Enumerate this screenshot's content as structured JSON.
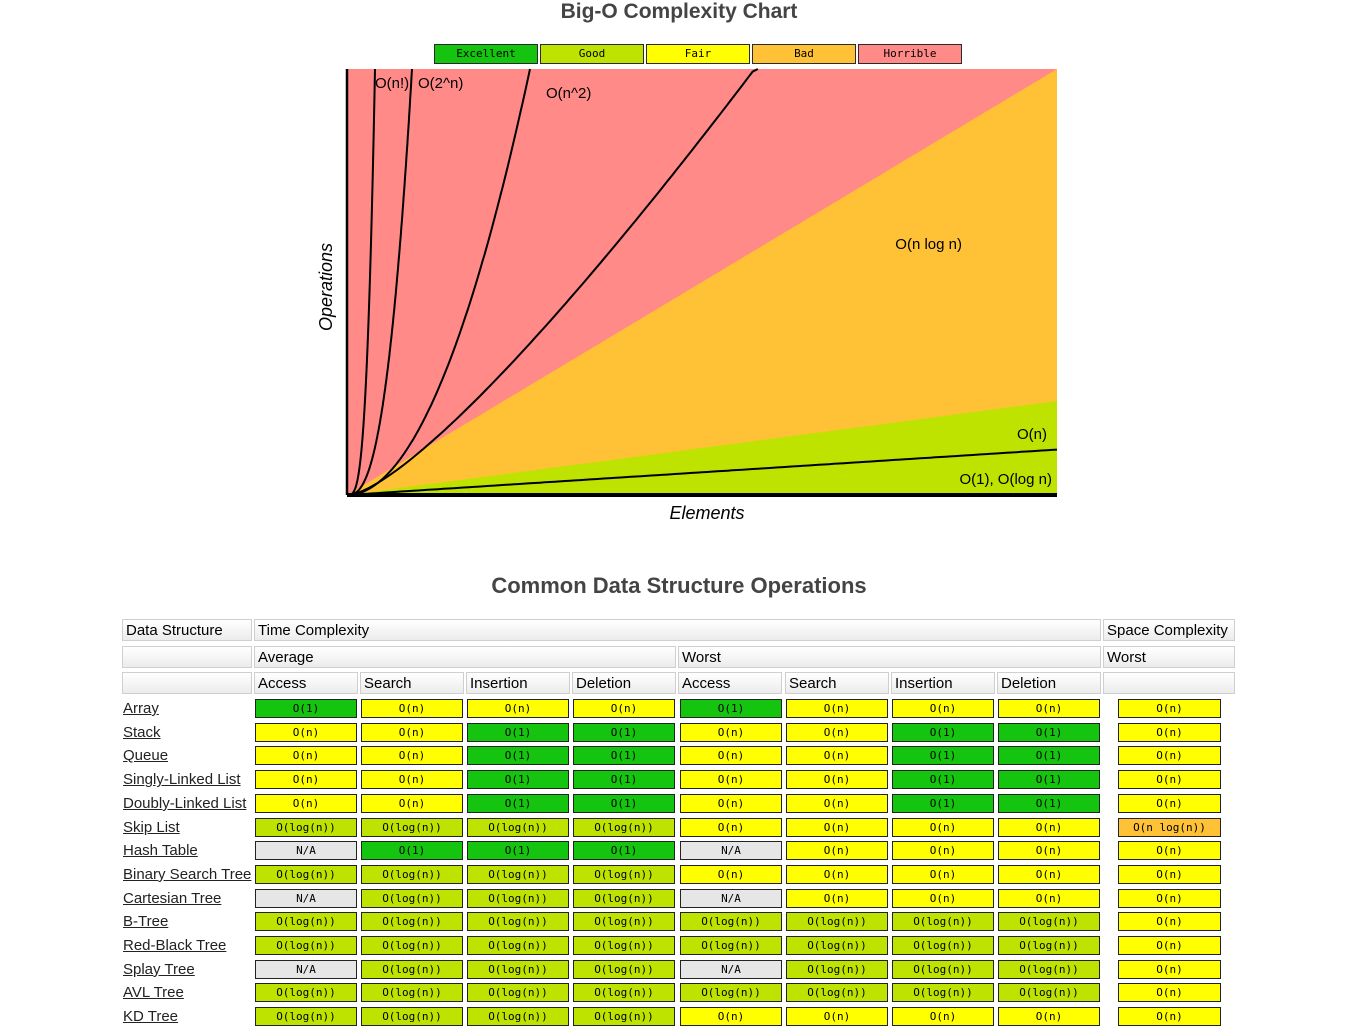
{
  "chart": {
    "title": "Big-O Complexity Chart",
    "legend": [
      {
        "label": "Excellent",
        "color": "#14c40e"
      },
      {
        "label": "Good",
        "color": "#bfe300"
      },
      {
        "label": "Fair",
        "color": "#ffff00"
      },
      {
        "label": "Bad",
        "color": "#ffc136"
      },
      {
        "label": "Horrible",
        "color": "#ff8a87"
      }
    ]
  },
  "chart_data": {
    "type": "line",
    "title": "Big-O Complexity Chart",
    "xlabel": "Elements",
    "ylabel": "Operations",
    "grid": false,
    "legend_placement": "top",
    "regions": [
      {
        "name": "Horrible",
        "color": "#ff8a87"
      },
      {
        "name": "Bad",
        "color": "#ffc136"
      },
      {
        "name": "Good",
        "color": "#bfe300"
      }
    ],
    "curves": [
      {
        "name": "O(n!)"
      },
      {
        "name": "O(2^n)"
      },
      {
        "name": "O(n^2)"
      },
      {
        "name": "O(n log n)"
      },
      {
        "name": "O(n)"
      },
      {
        "name": "O(1), O(log n)"
      }
    ]
  },
  "table": {
    "title": "Common Data Structure Operations",
    "headers": {
      "data_structure": "Data Structure",
      "time_complexity": "Time Complexity",
      "space_complexity": "Space Complexity",
      "average": "Average",
      "worst": "Worst",
      "space_worst": "Worst",
      "ops": [
        "Access",
        "Search",
        "Insertion",
        "Deletion",
        "Access",
        "Search",
        "Insertion",
        "Deletion"
      ]
    },
    "rating_colors": {
      "excellent": "#14c40e",
      "good": "#bfe300",
      "fair": "#ffff00",
      "bad": "#ffc136",
      "na": "#e6e6e6"
    },
    "rows": [
      {
        "name": "Array",
        "values": [
          "O(1)",
          "O(n)",
          "O(n)",
          "O(n)",
          "O(1)",
          "O(n)",
          "O(n)",
          "O(n)",
          "O(n)"
        ],
        "ratings": [
          "excellent",
          "fair",
          "fair",
          "fair",
          "excellent",
          "fair",
          "fair",
          "fair",
          "fair"
        ]
      },
      {
        "name": "Stack",
        "values": [
          "O(n)",
          "O(n)",
          "O(1)",
          "O(1)",
          "O(n)",
          "O(n)",
          "O(1)",
          "O(1)",
          "O(n)"
        ],
        "ratings": [
          "fair",
          "fair",
          "excellent",
          "excellent",
          "fair",
          "fair",
          "excellent",
          "excellent",
          "fair"
        ]
      },
      {
        "name": "Queue",
        "values": [
          "O(n)",
          "O(n)",
          "O(1)",
          "O(1)",
          "O(n)",
          "O(n)",
          "O(1)",
          "O(1)",
          "O(n)"
        ],
        "ratings": [
          "fair",
          "fair",
          "excellent",
          "excellent",
          "fair",
          "fair",
          "excellent",
          "excellent",
          "fair"
        ]
      },
      {
        "name": "Singly-Linked List",
        "values": [
          "O(n)",
          "O(n)",
          "O(1)",
          "O(1)",
          "O(n)",
          "O(n)",
          "O(1)",
          "O(1)",
          "O(n)"
        ],
        "ratings": [
          "fair",
          "fair",
          "excellent",
          "excellent",
          "fair",
          "fair",
          "excellent",
          "excellent",
          "fair"
        ]
      },
      {
        "name": "Doubly-Linked List",
        "values": [
          "O(n)",
          "O(n)",
          "O(1)",
          "O(1)",
          "O(n)",
          "O(n)",
          "O(1)",
          "O(1)",
          "O(n)"
        ],
        "ratings": [
          "fair",
          "fair",
          "excellent",
          "excellent",
          "fair",
          "fair",
          "excellent",
          "excellent",
          "fair"
        ]
      },
      {
        "name": "Skip List",
        "values": [
          "O(log(n))",
          "O(log(n))",
          "O(log(n))",
          "O(log(n))",
          "O(n)",
          "O(n)",
          "O(n)",
          "O(n)",
          "O(n log(n))"
        ],
        "ratings": [
          "good",
          "good",
          "good",
          "good",
          "fair",
          "fair",
          "fair",
          "fair",
          "bad"
        ]
      },
      {
        "name": "Hash Table",
        "values": [
          "N/A",
          "O(1)",
          "O(1)",
          "O(1)",
          "N/A",
          "O(n)",
          "O(n)",
          "O(n)",
          "O(n)"
        ],
        "ratings": [
          "na",
          "excellent",
          "excellent",
          "excellent",
          "na",
          "fair",
          "fair",
          "fair",
          "fair"
        ]
      },
      {
        "name": "Binary Search Tree",
        "values": [
          "O(log(n))",
          "O(log(n))",
          "O(log(n))",
          "O(log(n))",
          "O(n)",
          "O(n)",
          "O(n)",
          "O(n)",
          "O(n)"
        ],
        "ratings": [
          "good",
          "good",
          "good",
          "good",
          "fair",
          "fair",
          "fair",
          "fair",
          "fair"
        ]
      },
      {
        "name": "Cartesian Tree",
        "values": [
          "N/A",
          "O(log(n))",
          "O(log(n))",
          "O(log(n))",
          "N/A",
          "O(n)",
          "O(n)",
          "O(n)",
          "O(n)"
        ],
        "ratings": [
          "na",
          "good",
          "good",
          "good",
          "na",
          "fair",
          "fair",
          "fair",
          "fair"
        ]
      },
      {
        "name": "B-Tree",
        "values": [
          "O(log(n))",
          "O(log(n))",
          "O(log(n))",
          "O(log(n))",
          "O(log(n))",
          "O(log(n))",
          "O(log(n))",
          "O(log(n))",
          "O(n)"
        ],
        "ratings": [
          "good",
          "good",
          "good",
          "good",
          "good",
          "good",
          "good",
          "good",
          "fair"
        ]
      },
      {
        "name": "Red-Black Tree",
        "values": [
          "O(log(n))",
          "O(log(n))",
          "O(log(n))",
          "O(log(n))",
          "O(log(n))",
          "O(log(n))",
          "O(log(n))",
          "O(log(n))",
          "O(n)"
        ],
        "ratings": [
          "good",
          "good",
          "good",
          "good",
          "good",
          "good",
          "good",
          "good",
          "fair"
        ]
      },
      {
        "name": "Splay Tree",
        "values": [
          "N/A",
          "O(log(n))",
          "O(log(n))",
          "O(log(n))",
          "N/A",
          "O(log(n))",
          "O(log(n))",
          "O(log(n))",
          "O(n)"
        ],
        "ratings": [
          "na",
          "good",
          "good",
          "good",
          "na",
          "good",
          "good",
          "good",
          "fair"
        ]
      },
      {
        "name": "AVL Tree",
        "values": [
          "O(log(n))",
          "O(log(n))",
          "O(log(n))",
          "O(log(n))",
          "O(log(n))",
          "O(log(n))",
          "O(log(n))",
          "O(log(n))",
          "O(n)"
        ],
        "ratings": [
          "good",
          "good",
          "good",
          "good",
          "good",
          "good",
          "good",
          "good",
          "fair"
        ]
      },
      {
        "name": "KD Tree",
        "values": [
          "O(log(n))",
          "O(log(n))",
          "O(log(n))",
          "O(log(n))",
          "O(n)",
          "O(n)",
          "O(n)",
          "O(n)",
          "O(n)"
        ],
        "ratings": [
          "good",
          "good",
          "good",
          "good",
          "fair",
          "fair",
          "fair",
          "fair",
          "fair"
        ]
      }
    ]
  }
}
